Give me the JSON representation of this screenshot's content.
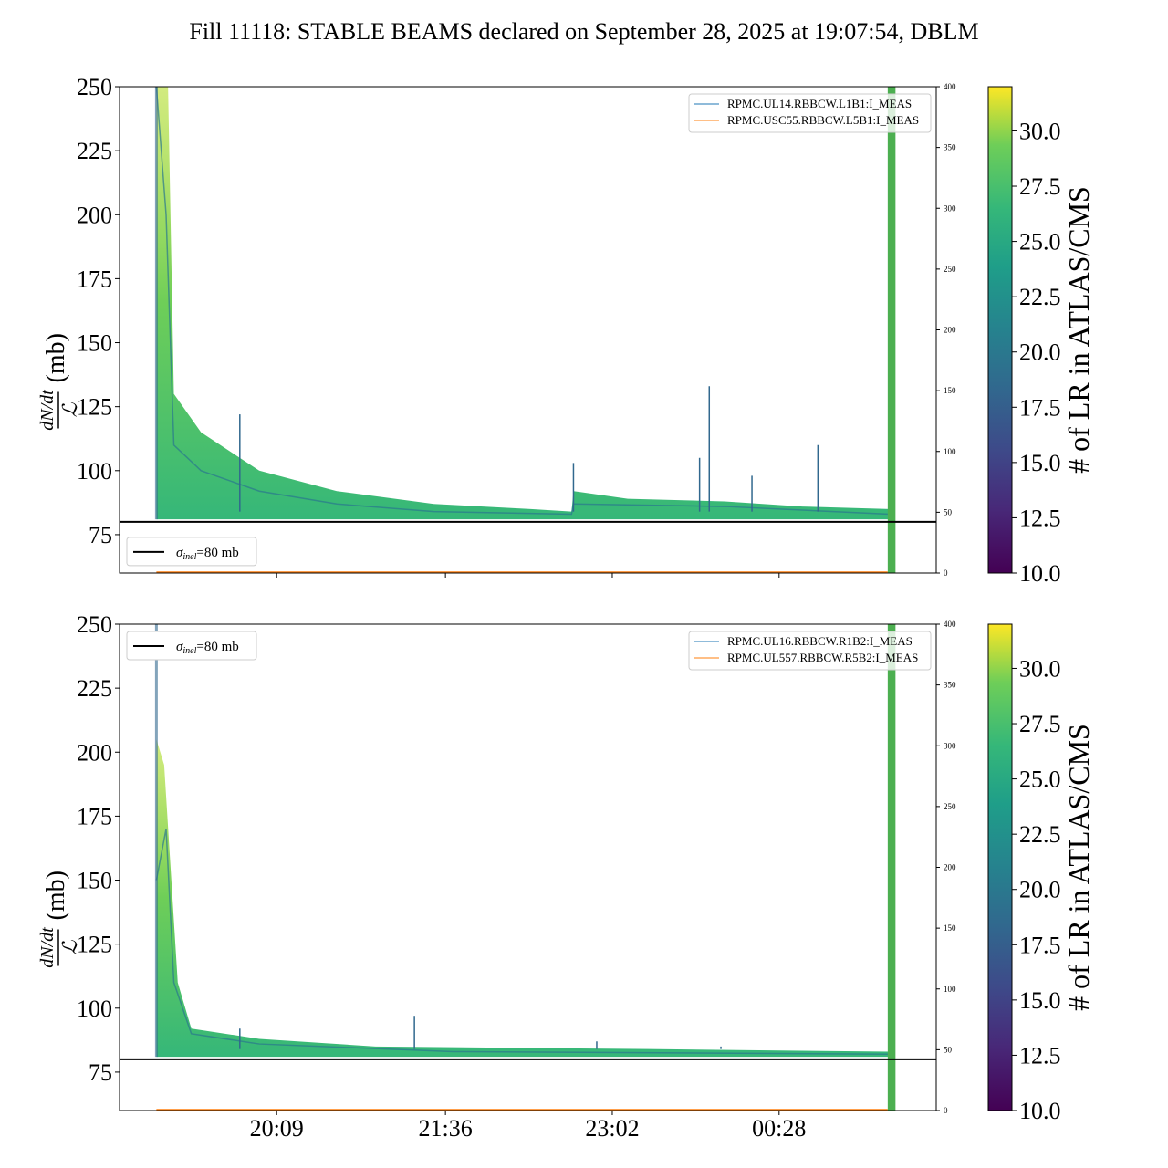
{
  "title": "Fill 11118: STABLE BEAMS declared on September 28, 2025 at 19:07:54, DBLM",
  "chart_data": [
    {
      "type": "line",
      "panel": "top",
      "ylabel_num": "dN/dt",
      "ylabel_den": "ℒ",
      "ylabel_unit": "(mb)",
      "ylim": [
        60,
        250
      ],
      "yticks": [
        75,
        100,
        125,
        150,
        175,
        200,
        225,
        250
      ],
      "xlim_minutes": [
        1128,
        1549
      ],
      "xticks": [
        {
          "m": 1209,
          "label": "20:09"
        },
        {
          "m": 1296,
          "label": "21:36"
        },
        {
          "m": 1382,
          "label": "23:02"
        },
        {
          "m": 1468,
          "label": "00:28"
        }
      ],
      "show_xtick_labels": false,
      "y2lim": [
        0,
        400
      ],
      "y2ticks": [
        0,
        50,
        100,
        150,
        200,
        250,
        300,
        350,
        400
      ],
      "reference": {
        "value": 80,
        "label": "σinel=80 mb",
        "sub": "inel",
        "legend_pos": "bottom-left"
      },
      "legend": [
        {
          "name": "RPMC.UL14.RBBCW.L1B1:I_MEAS",
          "color": "#1f77b4"
        },
        {
          "name": "RPMC.USC55.RBBCW.L5B1:I_MEAS",
          "color": "#ff7f0e"
        }
      ],
      "legend_pos": "top-right",
      "envelope_upper": [
        [
          1147,
          250
        ],
        [
          1153,
          250
        ],
        [
          1156,
          130
        ],
        [
          1170,
          115
        ],
        [
          1200,
          100
        ],
        [
          1240,
          92
        ],
        [
          1290,
          87
        ],
        [
          1340,
          85
        ],
        [
          1361,
          84
        ],
        [
          1362,
          92
        ],
        [
          1390,
          89
        ],
        [
          1440,
          88
        ],
        [
          1480,
          86
        ],
        [
          1525,
          85
        ]
      ],
      "envelope_median": [
        [
          1147,
          250
        ],
        [
          1152,
          200
        ],
        [
          1156,
          110
        ],
        [
          1170,
          100
        ],
        [
          1200,
          92
        ],
        [
          1240,
          87
        ],
        [
          1290,
          84
        ],
        [
          1361,
          83
        ],
        [
          1362,
          87
        ],
        [
          1440,
          86
        ],
        [
          1525,
          83
        ]
      ],
      "envelope_lower": [
        [
          1147,
          81
        ],
        [
          1525,
          81
        ]
      ],
      "spikes": [
        [
          1190,
          122
        ],
        [
          1362,
          103
        ],
        [
          1427,
          105
        ],
        [
          1432,
          133
        ],
        [
          1454,
          98
        ],
        [
          1488,
          110
        ]
      ],
      "current_series_value": 0,
      "beam_dump_band": [
        1524,
        1528
      ]
    },
    {
      "type": "line",
      "panel": "bottom",
      "ylabel_num": "dN/dt",
      "ylabel_den": "ℒ",
      "ylabel_unit": "(mb)",
      "ylim": [
        60,
        250
      ],
      "yticks": [
        75,
        100,
        125,
        150,
        175,
        200,
        225,
        250
      ],
      "xlim_minutes": [
        1128,
        1549
      ],
      "xticks": [
        {
          "m": 1209,
          "label": "20:09"
        },
        {
          "m": 1296,
          "label": "21:36"
        },
        {
          "m": 1382,
          "label": "23:02"
        },
        {
          "m": 1468,
          "label": "00:28"
        }
      ],
      "show_xtick_labels": true,
      "y2lim": [
        0,
        400
      ],
      "y2ticks": [
        0,
        50,
        100,
        150,
        200,
        250,
        300,
        350,
        400
      ],
      "reference": {
        "value": 80,
        "label": "σinel=80 mb",
        "sub": "inel",
        "legend_pos": "top-left"
      },
      "legend": [
        {
          "name": "RPMC.UL16.RBBCW.R1B2:I_MEAS",
          "color": "#1f77b4"
        },
        {
          "name": "RPMC.UL557.RBBCW.R5B2:I_MEAS",
          "color": "#ff7f0e"
        }
      ],
      "legend_pos": "top-right",
      "envelope_upper": [
        [
          1147,
          205
        ],
        [
          1151,
          195
        ],
        [
          1158,
          110
        ],
        [
          1165,
          92
        ],
        [
          1200,
          88
        ],
        [
          1260,
          85
        ],
        [
          1400,
          84
        ],
        [
          1525,
          83
        ]
      ],
      "envelope_median": [
        [
          1147,
          150
        ],
        [
          1152,
          170
        ],
        [
          1156,
          110
        ],
        [
          1165,
          90
        ],
        [
          1200,
          86
        ],
        [
          1300,
          83
        ],
        [
          1525,
          82
        ]
      ],
      "envelope_lower": [
        [
          1147,
          81
        ],
        [
          1525,
          81
        ]
      ],
      "spikes": [
        [
          1190,
          92
        ],
        [
          1280,
          97
        ],
        [
          1374,
          87
        ],
        [
          1438,
          85
        ]
      ],
      "current_series_value": 0,
      "beam_dump_band": [
        1524,
        1528
      ]
    }
  ],
  "colorbar": {
    "label": "# of LR in ATLAS/CMS",
    "range": [
      10,
      32
    ],
    "ticks": [
      "10.0",
      "12.5",
      "15.0",
      "17.5",
      "20.0",
      "22.5",
      "25.0",
      "27.5",
      "30.0"
    ]
  }
}
